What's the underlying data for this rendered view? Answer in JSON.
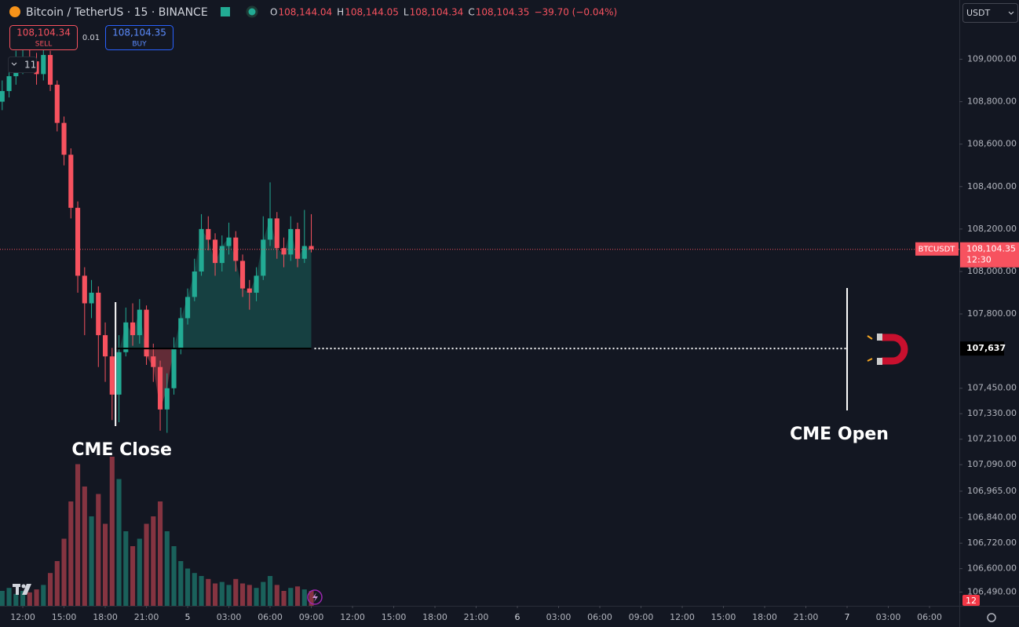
{
  "header": {
    "symbol": "Bitcoin / TetherUS · 15 · BINANCE",
    "ohlc": [
      {
        "label": "O",
        "value": "108,144.04"
      },
      {
        "label": "H",
        "value": "108,144.05"
      },
      {
        "label": "L",
        "value": "108,104.34"
      },
      {
        "label": "C",
        "value": "108,104.35"
      }
    ],
    "change": "−39.70 (−0.04%)",
    "currency": "USDT"
  },
  "trade": {
    "sell_price": "108,104.34",
    "sell": "SELL",
    "spread": "0.01",
    "buy_price": "108,104.35",
    "buy": "BUY"
  },
  "indicators_count": "11",
  "alerts_count": "12",
  "chart_data": {
    "type": "candlestick",
    "x": [
      10.5,
      11,
      11.5,
      12,
      12.5,
      13,
      13.5,
      14,
      14.5,
      15,
      15.5,
      16,
      16.5,
      17,
      17.5,
      18,
      18.5,
      19,
      19.5,
      20,
      20.5,
      21,
      21.5,
      22,
      22.5,
      23,
      23.5,
      24,
      24.5,
      25,
      25.5,
      26,
      26.5,
      27,
      27.5,
      28,
      28.5,
      29,
      29.5,
      30,
      30.5,
      31,
      31.5,
      32,
      32.5,
      33
    ],
    "open": [
      108800,
      108850,
      108920,
      108960,
      109010,
      108990,
      108930,
      109020,
      108880,
      108700,
      108550,
      108300,
      107980,
      107850,
      107900,
      107700,
      107600,
      107420,
      107620,
      107760,
      107700,
      107820,
      107600,
      107550,
      107350,
      107450,
      107640,
      107780,
      107880,
      108000,
      108200,
      108150,
      108040,
      108120,
      108160,
      108050,
      107920,
      107900,
      107980,
      108150,
      108250,
      108110,
      108080,
      108200,
      108060,
      108120
    ],
    "high": [
      108900,
      108960,
      109040,
      109080,
      109060,
      109030,
      109090,
      109040,
      108900,
      108730,
      108580,
      108330,
      108020,
      107960,
      107930,
      107760,
      107640,
      107700,
      107830,
      107850,
      107870,
      107840,
      107660,
      107580,
      107520,
      107690,
      107830,
      107920,
      108060,
      108270,
      108260,
      108180,
      108170,
      108230,
      108190,
      108080,
      107960,
      108020,
      108260,
      108420,
      108280,
      108160,
      108260,
      108230,
      108290,
      108270
    ],
    "low": [
      108760,
      108820,
      108880,
      108930,
      108940,
      108880,
      108900,
      108850,
      108660,
      108500,
      108250,
      107900,
      107700,
      107780,
      107550,
      107480,
      107300,
      107290,
      107600,
      107650,
      107660,
      107560,
      107480,
      107250,
      107240,
      107420,
      107610,
      107750,
      107860,
      107980,
      108100,
      107980,
      108000,
      108080,
      108000,
      107880,
      107820,
      107860,
      107960,
      108120,
      108060,
      108020,
      108050,
      108020,
      108040,
      108090
    ],
    "close": [
      108850,
      108920,
      108960,
      109010,
      108990,
      108930,
      109020,
      108880,
      108700,
      108550,
      108300,
      107980,
      107850,
      107900,
      107700,
      107600,
      107420,
      107620,
      107760,
      107700,
      107820,
      107600,
      107550,
      107350,
      107450,
      107640,
      107780,
      107880,
      108000,
      108200,
      108150,
      108040,
      108120,
      108160,
      108050,
      107920,
      107900,
      107980,
      108150,
      108250,
      108110,
      108080,
      108200,
      108060,
      108120,
      108104.35
    ],
    "volume": [
      10,
      12,
      8,
      10,
      9,
      11,
      14,
      22,
      30,
      45,
      70,
      95,
      80,
      60,
      75,
      55,
      100,
      85,
      50,
      40,
      45,
      55,
      60,
      70,
      50,
      40,
      30,
      25,
      22,
      20,
      18,
      15,
      16,
      14,
      18,
      15,
      14,
      12,
      16,
      20,
      14,
      10,
      12,
      13,
      11,
      10
    ],
    "up_color": "#22ab94",
    "down_color": "#f7525f",
    "xlim": [
      10.34,
      80.17
    ],
    "xticks": [
      {
        "value": 12,
        "label": "12:00"
      },
      {
        "value": 15,
        "label": "15:00"
      },
      {
        "value": 18,
        "label": "18:00"
      },
      {
        "value": 21,
        "label": "21:00"
      },
      {
        "value": 24,
        "label": "5"
      },
      {
        "value": 27,
        "label": "03:00"
      },
      {
        "value": 30,
        "label": "06:00"
      },
      {
        "value": 33,
        "label": "09:00"
      },
      {
        "value": 36,
        "label": "12:00"
      },
      {
        "value": 39,
        "label": "15:00"
      },
      {
        "value": 42,
        "label": "18:00"
      },
      {
        "value": 45,
        "label": "21:00"
      },
      {
        "value": 48,
        "label": "6"
      },
      {
        "value": 51,
        "label": "03:00"
      },
      {
        "value": 54,
        "label": "06:00"
      },
      {
        "value": 57,
        "label": "09:00"
      },
      {
        "value": 60,
        "label": "12:00"
      },
      {
        "value": 63,
        "label": "15:00"
      },
      {
        "value": 66,
        "label": "18:00"
      },
      {
        "value": 69,
        "label": "21:00"
      },
      {
        "value": 72,
        "label": "7"
      },
      {
        "value": 75,
        "label": "03:00"
      },
      {
        "value": 78,
        "label": "06:00"
      }
    ],
    "ylim": [
      106425,
      109279
    ],
    "yticks": [
      {
        "value": 109000,
        "label": "109,000.00"
      },
      {
        "value": 108800,
        "label": "108,800.00"
      },
      {
        "value": 108600,
        "label": "108,600.00"
      },
      {
        "value": 108400,
        "label": "108,400.00"
      },
      {
        "value": 108200,
        "label": "108,200.00"
      },
      {
        "value": 108000,
        "label": "108,000.00"
      },
      {
        "value": 107800,
        "label": "107,800.00"
      },
      {
        "value": 107450,
        "label": "107,450.00"
      },
      {
        "value": 107330,
        "label": "107,330.00"
      },
      {
        "value": 107210,
        "label": "107,210.00"
      },
      {
        "value": 107090,
        "label": "107,090.00"
      },
      {
        "value": 106965,
        "label": "106,965.00"
      },
      {
        "value": 106840,
        "label": "106,840.00"
      },
      {
        "value": 106720,
        "label": "106,720.00"
      },
      {
        "value": 106600,
        "label": "106,600.00"
      },
      {
        "value": 106490,
        "label": "106,490.00"
      }
    ],
    "grid": false,
    "last_price": {
      "value": 108104.35,
      "label": "108,104.35",
      "symbol": "BTCUSDT",
      "countdown": "12:30"
    },
    "level": {
      "value": 107637,
      "label": "107,637"
    },
    "annotations": [
      {
        "text": "CME Close",
        "x": 18.75
      },
      {
        "text": "CME Open",
        "x": 72
      }
    ]
  }
}
